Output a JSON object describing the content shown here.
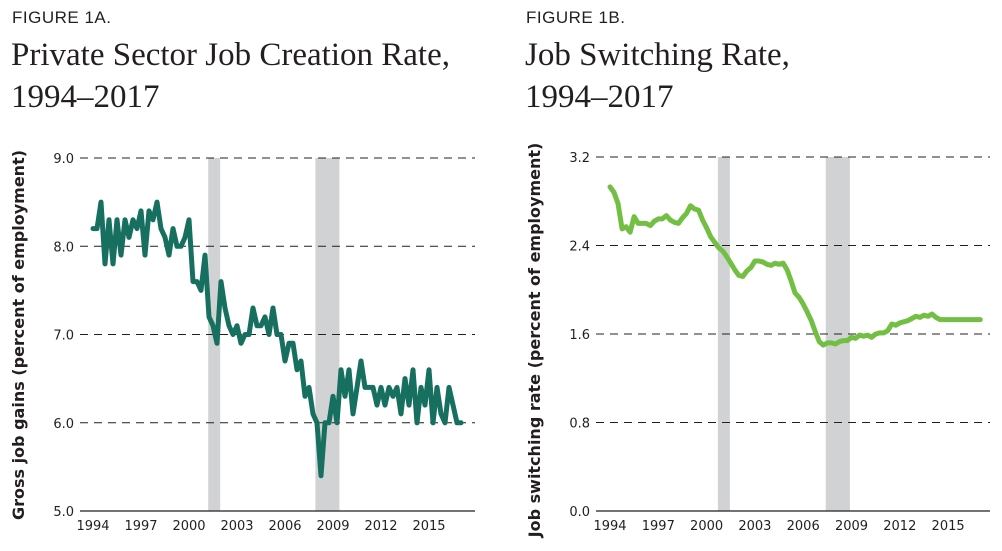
{
  "figures": [
    {
      "label": "FIGURE 1A.",
      "title_line1": "Private Sector Job Creation Rate,",
      "title_line2": "1994–2017"
    },
    {
      "label": "FIGURE 1B.",
      "title_line1": "Job Switching Rate,",
      "title_line2": "1994–2017"
    }
  ],
  "colors": {
    "line_a": "#17705f",
    "line_b": "#72bf44",
    "recession": "#d1d2d4",
    "grid": "#231f20",
    "text": "#231f20"
  },
  "chart_data": [
    {
      "type": "line",
      "title": "Private Sector Job Creation Rate, 1994–2017",
      "xlabel": "",
      "ylabel": "Gross job gains (percent of employment)",
      "xlim": [
        1994,
        2017
      ],
      "ylim": [
        5.0,
        9.0
      ],
      "yticks": [
        "5.0",
        "6.0",
        "7.0",
        "8.0",
        "9.0"
      ],
      "xticks": [
        "1994",
        "1997",
        "2000",
        "2003",
        "2006",
        "2009",
        "2012",
        "2015"
      ],
      "grid": "horizontal dashed",
      "recessions": [
        [
          2001.2,
          2001.9
        ],
        [
          2007.9,
          2009.4
        ]
      ],
      "series": [
        {
          "name": "Gross job gains",
          "x": [
            1994.0,
            1994.25,
            1994.5,
            1994.75,
            1995.0,
            1995.25,
            1995.5,
            1995.75,
            1996.0,
            1996.25,
            1996.5,
            1996.75,
            1997.0,
            1997.25,
            1997.5,
            1997.75,
            1998.0,
            1998.25,
            1998.5,
            1998.75,
            1999.0,
            1999.25,
            1999.5,
            1999.75,
            2000.0,
            2000.25,
            2000.5,
            2000.75,
            2001.0,
            2001.25,
            2001.5,
            2001.75,
            2002.0,
            2002.25,
            2002.5,
            2002.75,
            2003.0,
            2003.25,
            2003.5,
            2003.75,
            2004.0,
            2004.25,
            2004.5,
            2004.75,
            2005.0,
            2005.25,
            2005.5,
            2005.75,
            2006.0,
            2006.25,
            2006.5,
            2006.75,
            2007.0,
            2007.25,
            2007.5,
            2007.75,
            2008.0,
            2008.25,
            2008.5,
            2008.75,
            2009.0,
            2009.25,
            2009.5,
            2009.75,
            2010.0,
            2010.25,
            2010.5,
            2010.75,
            2011.0,
            2011.25,
            2011.5,
            2011.75,
            2012.0,
            2012.25,
            2012.5,
            2012.75,
            2013.0,
            2013.25,
            2013.5,
            2013.75,
            2014.0,
            2014.25,
            2014.5,
            2014.75,
            2015.0,
            2015.25,
            2015.5,
            2015.75,
            2016.0,
            2016.25,
            2016.5,
            2016.75,
            2017.0
          ],
          "y": [
            8.2,
            8.2,
            8.5,
            7.8,
            8.3,
            7.8,
            8.3,
            7.9,
            8.3,
            8.1,
            8.3,
            8.2,
            8.4,
            7.9,
            8.4,
            8.3,
            8.5,
            8.2,
            8.1,
            7.9,
            8.2,
            8.0,
            8.0,
            8.1,
            8.3,
            7.6,
            7.6,
            7.5,
            7.9,
            7.2,
            7.1,
            6.9,
            7.6,
            7.3,
            7.1,
            7.0,
            7.1,
            6.9,
            7.0,
            7.0,
            7.3,
            7.1,
            7.1,
            7.2,
            7.0,
            7.3,
            7.0,
            7.0,
            6.7,
            6.9,
            6.9,
            6.6,
            6.7,
            6.3,
            6.4,
            6.1,
            6.0,
            5.4,
            6.0,
            6.0,
            6.3,
            6.0,
            6.6,
            6.3,
            6.6,
            6.1,
            6.4,
            6.7,
            6.4,
            6.4,
            6.4,
            6.2,
            6.4,
            6.2,
            6.4,
            6.3,
            6.4,
            6.1,
            6.5,
            6.2,
            6.6,
            6.0,
            6.4,
            6.2,
            6.6,
            6.0,
            6.4,
            6.1,
            6.0,
            6.4,
            6.2,
            6.0,
            6.0
          ]
        }
      ]
    },
    {
      "type": "line",
      "title": "Job Switching Rate, 1994–2017",
      "xlabel": "",
      "ylabel": "Job switching rate (percent of employment)",
      "xlim": [
        1994,
        2017
      ],
      "ylim": [
        0.0,
        3.2
      ],
      "yticks": [
        "0.0",
        "0.8",
        "1.6",
        "2.4",
        "3.2"
      ],
      "xticks": [
        "1994",
        "1997",
        "2000",
        "2003",
        "2006",
        "2009",
        "2012",
        "2015"
      ],
      "grid": "horizontal dashed",
      "recessions": [
        [
          2000.7,
          2001.4
        ],
        [
          2007.4,
          2008.9
        ]
      ],
      "series": [
        {
          "name": "Job switching rate",
          "x": [
            1994.0,
            1994.25,
            1994.5,
            1994.75,
            1995.0,
            1995.25,
            1995.5,
            1995.75,
            1996.0,
            1996.25,
            1996.5,
            1996.75,
            1997.0,
            1997.25,
            1997.5,
            1997.75,
            1998.0,
            1998.25,
            1998.5,
            1998.75,
            1999.0,
            1999.25,
            1999.5,
            1999.75,
            2000.0,
            2000.25,
            2000.5,
            2000.75,
            2001.0,
            2001.25,
            2001.5,
            2001.75,
            2002.0,
            2002.25,
            2002.5,
            2002.75,
            2003.0,
            2003.25,
            2003.5,
            2003.75,
            2004.0,
            2004.25,
            2004.5,
            2004.75,
            2005.0,
            2005.25,
            2005.5,
            2005.75,
            2006.0,
            2006.25,
            2006.5,
            2006.75,
            2007.0,
            2007.25,
            2007.5,
            2007.75,
            2008.0,
            2008.25,
            2008.5,
            2008.75,
            2009.0,
            2009.25,
            2009.5,
            2009.75,
            2010.0,
            2010.25,
            2010.5,
            2010.75,
            2011.0,
            2011.25,
            2011.5,
            2011.75,
            2012.0,
            2012.25,
            2012.5,
            2012.75,
            2013.0,
            2013.25,
            2013.5,
            2013.75,
            2014.0,
            2014.25,
            2014.5,
            2014.75,
            2015.0,
            2015.25,
            2015.5,
            2015.75,
            2016.0,
            2016.25,
            2016.5,
            2016.75,
            2017.0
          ],
          "y": [
            2.93,
            2.88,
            2.78,
            2.55,
            2.57,
            2.52,
            2.66,
            2.6,
            2.6,
            2.6,
            2.58,
            2.62,
            2.64,
            2.64,
            2.67,
            2.63,
            2.61,
            2.6,
            2.65,
            2.69,
            2.76,
            2.73,
            2.72,
            2.63,
            2.56,
            2.48,
            2.43,
            2.38,
            2.35,
            2.3,
            2.24,
            2.18,
            2.13,
            2.12,
            2.17,
            2.2,
            2.26,
            2.26,
            2.25,
            2.23,
            2.22,
            2.24,
            2.23,
            2.24,
            2.18,
            2.08,
            1.97,
            1.93,
            1.87,
            1.8,
            1.72,
            1.62,
            1.53,
            1.5,
            1.52,
            1.52,
            1.51,
            1.53,
            1.54,
            1.54,
            1.57,
            1.56,
            1.59,
            1.58,
            1.59,
            1.57,
            1.6,
            1.61,
            1.61,
            1.63,
            1.69,
            1.68,
            1.7,
            1.71,
            1.72,
            1.74,
            1.76,
            1.75,
            1.77,
            1.76,
            1.78,
            1.75,
            1.73,
            1.73,
            1.73,
            1.73,
            1.73,
            1.73,
            1.73,
            1.73,
            1.73,
            1.73,
            1.73
          ]
        }
      ]
    }
  ]
}
